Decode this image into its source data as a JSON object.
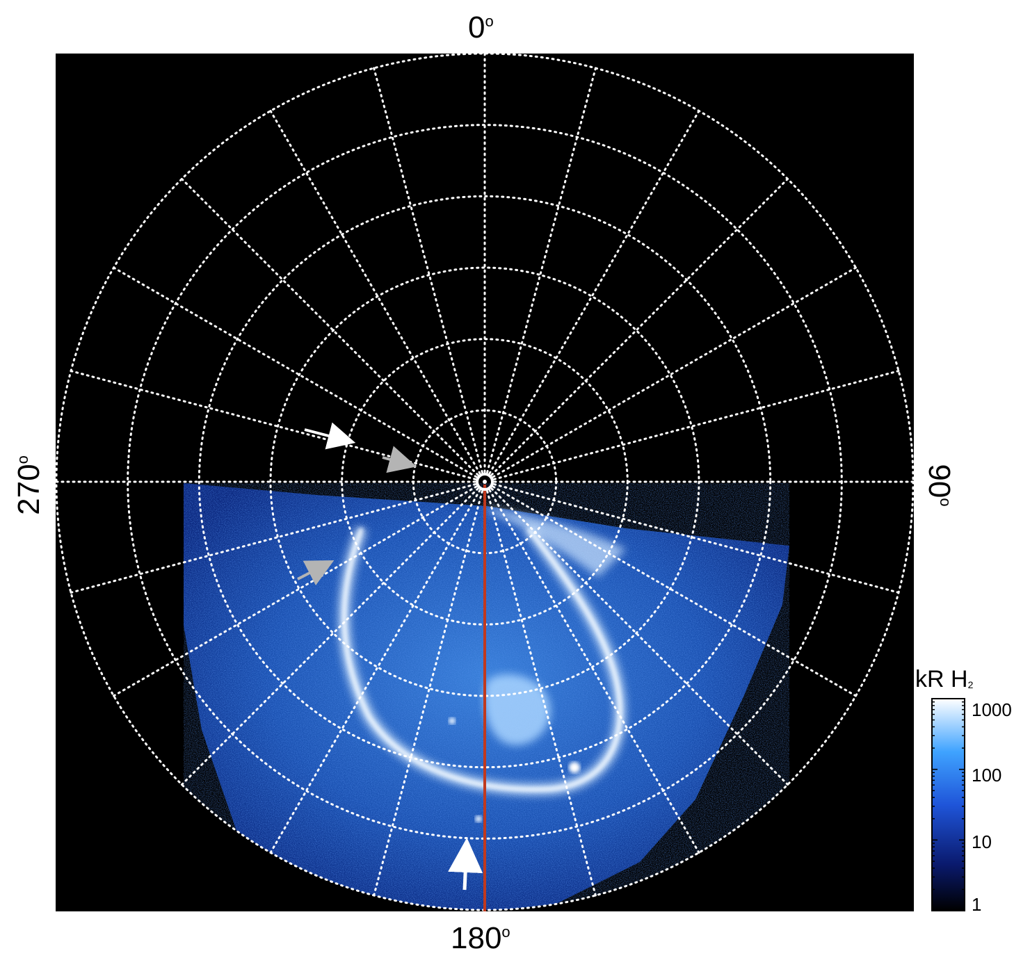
{
  "figure": {
    "longitude_labels": {
      "top": "0",
      "right": "90",
      "bottom": "180",
      "left": "270",
      "degree_symbol": "o"
    },
    "colorbar": {
      "unit": "kR H",
      "unit_subscript": "2",
      "tick_labels": [
        "1000",
        "100",
        "10",
        "1"
      ],
      "scale": "log",
      "range": [
        1,
        1000
      ],
      "colors": [
        "#000000",
        "#0a1a6e",
        "#1f55d9",
        "#3fa3ff",
        "#ffffff"
      ]
    },
    "colors": {
      "background": "#000000",
      "grid": "#ffffff",
      "meridian_line": "#c0391e",
      "arrow_white": "#ffffff",
      "arrow_grey": "#b4b4b4",
      "aurora_core": "#e8f4ff"
    },
    "grid": {
      "style": "dotted",
      "meridian_step_deg": 15,
      "latitude_circles": 6
    },
    "arrows": [
      {
        "color": "white"
      },
      {
        "color": "grey"
      },
      {
        "color": "grey"
      },
      {
        "color": "white"
      }
    ]
  }
}
